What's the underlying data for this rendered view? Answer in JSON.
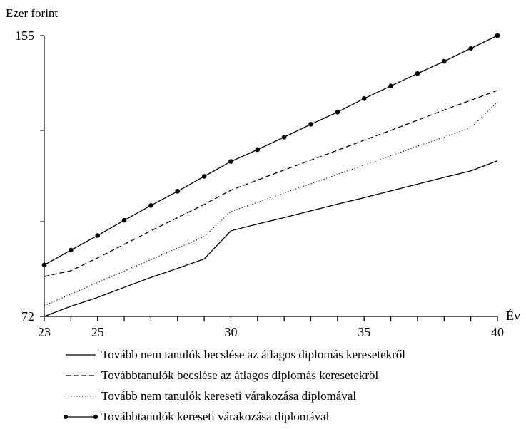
{
  "chart_data": {
    "type": "line",
    "ylabel": "Ezer forint",
    "xlabel": "Év",
    "ylim": [
      72,
      155
    ],
    "xlim": [
      23,
      40
    ],
    "x_ticks": [
      23,
      25,
      30,
      35,
      40
    ],
    "x_minor_ticks": [
      24,
      26,
      27,
      28,
      29,
      31,
      32,
      33,
      34,
      36,
      37,
      38,
      39
    ],
    "y_ticks": [
      72,
      155
    ],
    "y_minor_ticks": [
      100,
      127
    ],
    "legend_position": "bottom",
    "x": [
      23,
      24,
      25,
      26,
      27,
      28,
      29,
      30,
      31,
      32,
      33,
      34,
      35,
      36,
      37,
      38,
      39,
      40
    ],
    "series": [
      {
        "name": "Tovább nem tanulók becslése az átlagos diplomás keresetekről",
        "style": "solid",
        "color": "#000000",
        "values": [
          72,
          75,
          77.6,
          80.6,
          83.5,
          86.2,
          89,
          97.3,
          99.3,
          101.2,
          103.2,
          105.2,
          107.1,
          109.1,
          111.1,
          113.1,
          115,
          118
        ]
      },
      {
        "name": "Továbbtanulók becslése az átlagos diplomás keresetekről",
        "style": "dashed",
        "color": "#000000",
        "values": [
          83.8,
          85.5,
          89.3,
          93.3,
          97.3,
          101.2,
          105.1,
          109.3,
          112.3,
          115.3,
          118.2,
          121.1,
          124.1,
          127,
          130,
          133,
          135.9,
          138.8
        ]
      },
      {
        "name": "Tovább nem tanulók kereseti várakozása diplomával",
        "style": "dotted",
        "color": "#000000",
        "values": [
          75.2,
          78.6,
          82,
          85.4,
          88.8,
          92.2,
          95.6,
          103,
          105.7,
          108.5,
          111.2,
          114,
          116.7,
          119.5,
          122.3,
          125,
          127.8,
          135.4
        ]
      },
      {
        "name": "Továbbtanulók kereseti várakozása diplomával",
        "style": "solid-markers",
        "color": "#000000",
        "values": [
          87.2,
          91.6,
          95.9,
          100.4,
          104.8,
          109,
          113.4,
          117.8,
          121.3,
          125,
          128.8,
          132.4,
          136.4,
          140.1,
          143.8,
          147.4,
          151.2,
          155
        ]
      }
    ]
  }
}
